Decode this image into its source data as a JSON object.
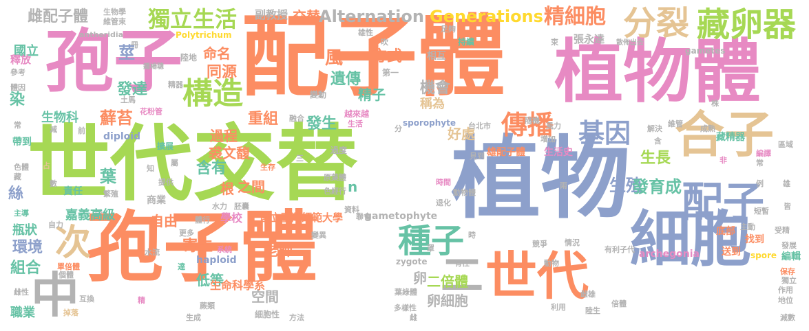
{
  "palette": {
    "orange": "#FC8D62",
    "blue": "#8DA0CB",
    "green": "#A6D854",
    "pink": "#E78AC3",
    "tan": "#E5C494",
    "gray": "#B3B3B3",
    "teal": "#66C2A5",
    "yellow": "#FFD92F"
  },
  "words": [
    {
      "text": "配子體",
      "color": "orange"
    },
    {
      "text": "世代交替",
      "color": "green"
    },
    {
      "text": "植物",
      "color": "blue"
    },
    {
      "text": "孢子體",
      "color": "orange"
    },
    {
      "text": "孢子",
      "color": "pink"
    },
    {
      "text": "植物體",
      "color": "pink"
    },
    {
      "text": "細胞",
      "color": "blue"
    },
    {
      "text": "世代",
      "color": "orange"
    },
    {
      "text": "合子",
      "color": "tan"
    },
    {
      "text": "配子",
      "color": "blue"
    },
    {
      "text": "藏卵器",
      "color": "green"
    },
    {
      "text": "分裂",
      "color": "tan"
    },
    {
      "text": "中",
      "color": "gray"
    },
    {
      "text": "次",
      "color": "tan"
    },
    {
      "text": "種子",
      "color": "teal"
    },
    {
      "text": "二",
      "color": "gray"
    },
    {
      "text": "構造",
      "color": "green"
    },
    {
      "text": "基因",
      "color": "blue"
    },
    {
      "text": "傳播",
      "color": "orange"
    },
    {
      "text": "生活",
      "color": "green"
    },
    {
      "text": "獨立",
      "color": "green"
    },
    {
      "text": "Alternation",
      "color": "gray"
    },
    {
      "text": "Generations",
      "color": "yellow"
    },
    {
      "text": "精細胞",
      "color": "orange"
    },
    {
      "text": "雌配子體",
      "color": "gray"
    },
    {
      "text": "交替",
      "color": "orange"
    },
    {
      "text": "副教授",
      "color": "gray"
    },
    {
      "text": "生物學",
      "color": "gray"
    },
    {
      "text": "維管束",
      "color": "gray"
    },
    {
      "text": "antheridia",
      "color": "gray"
    },
    {
      "text": "雄性",
      "color": "gray"
    },
    {
      "text": "吹",
      "color": "gray"
    },
    {
      "text": "足夠",
      "color": "gray"
    },
    {
      "text": "Polytrichum",
      "color": "yellow"
    },
    {
      "text": "國立",
      "color": "teal"
    },
    {
      "text": "冊",
      "color": "gray"
    },
    {
      "text": "莖",
      "color": "blue"
    },
    {
      "text": "陸地",
      "color": "gray"
    },
    {
      "text": "命名",
      "color": "orange"
    },
    {
      "text": "風",
      "color": "orange"
    },
    {
      "text": "方式",
      "color": "orange"
    },
    {
      "text": "相互",
      "color": "gray"
    },
    {
      "text": "持續",
      "color": "teal"
    },
    {
      "text": "束",
      "color": "gray"
    },
    {
      "text": "張永達",
      "color": "gray"
    },
    {
      "text": "散佈出去",
      "color": "gray"
    },
    {
      "text": "gametes",
      "color": "gray"
    },
    {
      "text": "釋放",
      "color": "pink"
    },
    {
      "text": "參考",
      "color": "gray"
    },
    {
      "text": "鍾楊聰",
      "color": "gray"
    },
    {
      "text": "同源",
      "color": "orange"
    },
    {
      "text": "遺傳",
      "color": "teal"
    },
    {
      "text": "第一",
      "color": "gray"
    },
    {
      "text": "精器",
      "color": "gray"
    },
    {
      "text": "發達",
      "color": "teal"
    },
    {
      "text": "體因",
      "color": "gray"
    },
    {
      "text": "精子",
      "color": "teal"
    },
    {
      "text": "機會",
      "color": "gray"
    },
    {
      "text": "稱為",
      "color": "tan"
    },
    {
      "text": "染",
      "color": "teal"
    },
    {
      "text": "生物科",
      "color": "teal"
    },
    {
      "text": "土馬",
      "color": "gray"
    },
    {
      "text": "花粉管",
      "color": "pink"
    },
    {
      "text": "變動",
      "color": "gray"
    },
    {
      "text": "越來越",
      "color": "pink"
    },
    {
      "text": "隨機",
      "color": "gray"
    },
    {
      "text": "株",
      "color": "gray"
    },
    {
      "text": "蘚苔",
      "color": "orange"
    },
    {
      "text": "重組",
      "color": "orange"
    },
    {
      "text": "發生",
      "color": "teal"
    },
    {
      "text": "好處",
      "color": "tan"
    },
    {
      "text": "融合",
      "color": "gray"
    },
    {
      "text": "生活",
      "color": "pink"
    },
    {
      "text": "台北市",
      "color": "gray"
    },
    {
      "text": "風力",
      "color": "gray"
    },
    {
      "text": "解決",
      "color": "gray"
    },
    {
      "text": "維管",
      "color": "gray"
    },
    {
      "text": "成熟",
      "color": "gray"
    },
    {
      "text": "常",
      "color": "gray"
    },
    {
      "text": "減",
      "color": "gray"
    },
    {
      "text": "前",
      "color": "gray"
    },
    {
      "text": "分",
      "color": "gray"
    },
    {
      "text": "sporophyte",
      "color": "blue"
    },
    {
      "text": "含",
      "color": "gray"
    },
    {
      "text": "藏精器",
      "color": "teal"
    },
    {
      "text": "diploid",
      "color": "blue"
    },
    {
      "text": "擴展",
      "color": "teal"
    },
    {
      "text": "帶到",
      "color": "teal"
    },
    {
      "text": "過程",
      "color": "orange"
    },
    {
      "text": "裘文馥",
      "color": "orange"
    },
    {
      "text": "過度",
      "color": "gray"
    },
    {
      "text": "增加",
      "color": "gray"
    },
    {
      "text": "區域",
      "color": "gray"
    },
    {
      "text": "雄配子體",
      "color": "orange"
    },
    {
      "text": "生活史",
      "color": "pink"
    },
    {
      "text": "編譯",
      "color": "pink"
    },
    {
      "text": "生長",
      "color": "green"
    },
    {
      "text": "屬",
      "color": "gray"
    },
    {
      "text": "三",
      "color": "gray"
    },
    {
      "text": "見到",
      "color": "gray"
    },
    {
      "text": "非",
      "color": "pink"
    },
    {
      "text": "常",
      "color": "gray"
    },
    {
      "text": "色體",
      "color": "gray"
    },
    {
      "text": "占",
      "color": "tan"
    },
    {
      "text": "知",
      "color": "gray"
    },
    {
      "text": "含有",
      "color": "teal"
    },
    {
      "text": "生存",
      "color": "orange"
    },
    {
      "text": "例",
      "color": "gray"
    },
    {
      "text": "雄",
      "color": "gray"
    },
    {
      "text": "藏",
      "color": "gray"
    },
    {
      "text": "葉",
      "color": "teal"
    },
    {
      "text": "提供",
      "color": "gray"
    },
    {
      "text": "之間",
      "color": "orange"
    },
    {
      "text": "根",
      "color": "orange"
    },
    {
      "text": "原葉體",
      "color": "gray"
    },
    {
      "text": "時間",
      "color": "pink"
    },
    {
      "text": "生殖",
      "color": "blue"
    },
    {
      "text": "發育成",
      "color": "teal"
    },
    {
      "text": "數",
      "color": "gray"
    },
    {
      "text": "絲",
      "color": "blue"
    },
    {
      "text": "責任",
      "color": "teal"
    },
    {
      "text": "繁殖",
      "color": "gray"
    },
    {
      "text": "色經行",
      "color": "gray"
    },
    {
      "text": "n",
      "color": "teal"
    },
    {
      "text": "動物體",
      "color": "gray"
    },
    {
      "text": "兩",
      "color": "gray"
    },
    {
      "text": "主導",
      "color": "teal"
    },
    {
      "text": "受",
      "color": "gray"
    },
    {
      "text": "商業",
      "color": "gray"
    },
    {
      "text": "水力",
      "color": "gray"
    },
    {
      "text": "胚囊",
      "color": "gray"
    },
    {
      "text": "退化",
      "color": "gray"
    },
    {
      "text": "皆",
      "color": "gray"
    },
    {
      "text": "嘉義高級",
      "color": "teal"
    },
    {
      "text": "資料",
      "color": "gray"
    },
    {
      "text": "短暫",
      "color": "gray"
    },
    {
      "text": "瓶狀",
      "color": "teal"
    },
    {
      "text": "自力",
      "color": "gray"
    },
    {
      "text": "自由",
      "color": "orange"
    },
    {
      "text": "體行",
      "color": "gray"
    },
    {
      "text": "學校",
      "color": "pink"
    },
    {
      "text": "國立臺灣師範大學",
      "color": "orange"
    },
    {
      "text": "聯會",
      "color": "gray"
    },
    {
      "text": "gametophyte",
      "color": "gray"
    },
    {
      "text": "主動",
      "color": "gray"
    },
    {
      "text": "受精",
      "color": "gray"
    },
    {
      "text": "環境",
      "color": "blue"
    },
    {
      "text": "更多",
      "color": "gray"
    },
    {
      "text": "寄生",
      "color": "orange"
    },
    {
      "text": "老師",
      "color": "orange"
    },
    {
      "text": "變異",
      "color": "gray"
    },
    {
      "text": "時",
      "color": "gray"
    },
    {
      "text": "底部",
      "color": "orange"
    },
    {
      "text": "找到",
      "color": "orange"
    },
    {
      "text": "組合",
      "color": "teal"
    },
    {
      "text": "水流",
      "color": "gray"
    },
    {
      "text": "系統",
      "color": "pink"
    },
    {
      "text": "罩",
      "color": "gray"
    },
    {
      "text": "競爭",
      "color": "gray"
    },
    {
      "text": "情況",
      "color": "gray"
    },
    {
      "text": "有利子代",
      "color": "gray"
    },
    {
      "text": "發展",
      "color": "gray"
    },
    {
      "text": "haploid",
      "color": "blue"
    },
    {
      "text": "zygote",
      "color": "gray"
    },
    {
      "text": "有性",
      "color": "gray"
    },
    {
      "text": "動物",
      "color": "gray"
    },
    {
      "text": "archegonia",
      "color": "pink"
    },
    {
      "text": "送到",
      "color": "orange"
    },
    {
      "text": "編輯",
      "color": "teal"
    },
    {
      "text": "單倍體",
      "color": "orange"
    },
    {
      "text": "達",
      "color": "teal"
    },
    {
      "text": "spore",
      "color": "yellow"
    },
    {
      "text": "保存",
      "color": "orange"
    },
    {
      "text": "個體",
      "color": "gray"
    },
    {
      "text": "低等",
      "color": "teal"
    },
    {
      "text": "生命科學系",
      "color": "orange"
    },
    {
      "text": "卵",
      "color": "gray"
    },
    {
      "text": "二倍體",
      "color": "green"
    },
    {
      "text": "獨立",
      "color": "gray"
    },
    {
      "text": "雌性",
      "color": "gray"
    },
    {
      "text": "空間",
      "color": "gray"
    },
    {
      "text": "葉綠體",
      "color": "gray"
    },
    {
      "text": "作用",
      "color": "gray"
    },
    {
      "text": "互換",
      "color": "gray"
    },
    {
      "text": "精",
      "color": "pink"
    },
    {
      "text": "蕨類",
      "color": "gray"
    },
    {
      "text": "倍體",
      "color": "gray"
    },
    {
      "text": "雌雄",
      "color": "gray"
    },
    {
      "text": "地位",
      "color": "gray"
    },
    {
      "text": "職業",
      "color": "teal"
    },
    {
      "text": "細胞性",
      "color": "gray"
    },
    {
      "text": "多樣性",
      "color": "gray"
    },
    {
      "text": "卵細胞",
      "color": "gray"
    },
    {
      "text": "利用",
      "color": "gray"
    },
    {
      "text": "陸生",
      "color": "gray"
    },
    {
      "text": "掉落",
      "color": "tan"
    },
    {
      "text": "生成",
      "color": "gray"
    },
    {
      "text": "方法",
      "color": "gray"
    },
    {
      "text": "雌",
      "color": "gray"
    },
    {
      "text": "減數",
      "color": "gray"
    }
  ]
}
